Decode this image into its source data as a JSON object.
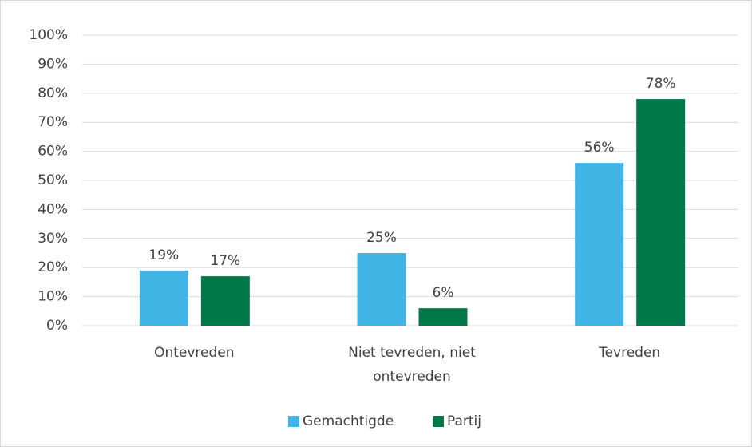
{
  "chart_data": {
    "type": "bar",
    "categories": [
      "Ontevreden",
      "Niet tevreden, niet ontevreden",
      "Tevreden"
    ],
    "series": [
      {
        "name": "Gemachtigde",
        "color": "#41b4e6",
        "values": [
          19,
          25,
          56
        ],
        "value_labels": [
          "19%",
          "25%",
          "56%"
        ]
      },
      {
        "name": "Partij",
        "color": "#00784a",
        "values": [
          17,
          6,
          78
        ],
        "value_labels": [
          "17%",
          "6%",
          "78%"
        ]
      }
    ],
    "ylim": [
      0,
      100
    ],
    "yticks": [
      {
        "value": 0,
        "label": "0%"
      },
      {
        "value": 10,
        "label": "10%"
      },
      {
        "value": 20,
        "label": "20%"
      },
      {
        "value": 30,
        "label": "30%"
      },
      {
        "value": 40,
        "label": "40%"
      },
      {
        "value": 50,
        "label": "50%"
      },
      {
        "value": 60,
        "label": "60%"
      },
      {
        "value": 70,
        "label": "70%"
      },
      {
        "value": 80,
        "label": "80%"
      },
      {
        "value": 90,
        "label": "90%"
      },
      {
        "value": 100,
        "label": "100%"
      }
    ],
    "grid": true,
    "legend": "bottom"
  }
}
